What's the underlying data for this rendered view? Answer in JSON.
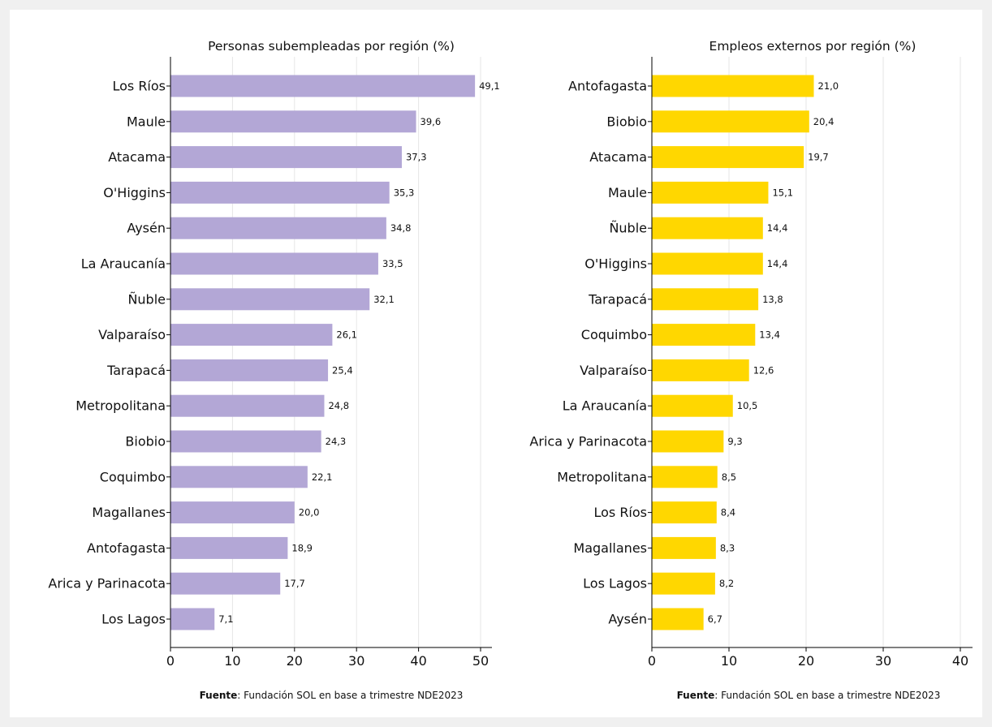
{
  "chart_data": [
    {
      "type": "bar",
      "orientation": "horizontal",
      "title": "Personas subempleadas por región (%)",
      "categories": [
        "Los Ríos",
        "Maule",
        "Atacama",
        "O'Higgins",
        "Aysén",
        "La Araucanía",
        "Ñuble",
        "Valparaíso",
        "Tarapacá",
        "Metropolitana",
        "Biobio",
        "Coquimbo",
        "Magallanes",
        "Antofagasta",
        "Arica y Parinacota",
        "Los Lagos"
      ],
      "values": [
        49.1,
        39.6,
        37.3,
        35.3,
        34.8,
        33.5,
        32.1,
        26.1,
        25.4,
        24.8,
        24.3,
        22.1,
        20.0,
        18.9,
        17.7,
        7.1
      ],
      "value_labels": [
        "49,1",
        "39,6",
        "37,3",
        "35,3",
        "34,8",
        "33,5",
        "32,1",
        "26,1",
        "25,4",
        "24,8",
        "24,3",
        "22,1",
        "20,0",
        "18,9",
        "17,7",
        "7,1"
      ],
      "xlim": [
        0,
        52
      ],
      "xticks": [
        0,
        10,
        20,
        30,
        40,
        50
      ],
      "bar_color": "#b3a7d6",
      "grid": true,
      "source_bold": "Fuente",
      "source_text": ": Fundación SOL en base a trimestre NDE2023"
    },
    {
      "type": "bar",
      "orientation": "horizontal",
      "title": "Empleos externos por región (%)",
      "categories": [
        "Antofagasta",
        "Biobio",
        "Atacama",
        "Maule",
        "Ñuble",
        "O'Higgins",
        "Tarapacá",
        "Coquimbo",
        "Valparaíso",
        "La Araucanía",
        "Arica y Parinacota",
        "Metropolitana",
        "Los Ríos",
        "Magallanes",
        "Los Lagos",
        "Aysén"
      ],
      "values": [
        21.0,
        20.4,
        19.7,
        15.1,
        14.4,
        14.4,
        13.8,
        13.4,
        12.6,
        10.5,
        9.3,
        8.5,
        8.4,
        8.3,
        8.2,
        6.7
      ],
      "value_labels": [
        "21,0",
        "20,4",
        "19,7",
        "15,1",
        "14,4",
        "14,4",
        "13,8",
        "13,4",
        "12,6",
        "10,5",
        "9,3",
        "8,5",
        "8,4",
        "8,3",
        "8,2",
        "6,7"
      ],
      "xlim": [
        0,
        42
      ],
      "xticks": [
        0,
        10,
        20,
        30,
        40
      ],
      "bar_color": "#ffd700",
      "grid": true,
      "source_bold": "Fuente",
      "source_text": ": Fundación SOL en base a trimestre NDE2023"
    }
  ]
}
